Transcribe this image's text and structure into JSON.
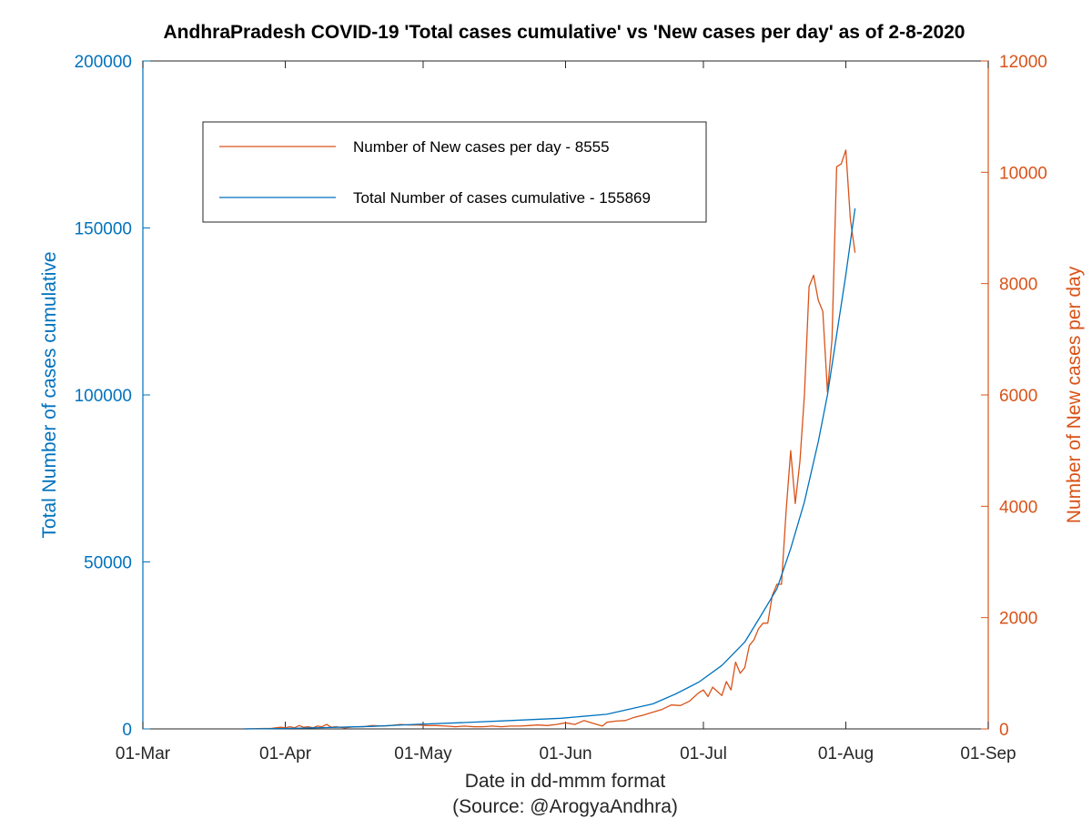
{
  "chart_data": {
    "type": "line",
    "title": "AndhraPradesh COVID-19 'Total cases cumulative' vs 'New cases per day' as of 2-8-2020",
    "xlabel": "Date in dd-mmm format",
    "xlabel_sub": "(Source: @ArogyaAndhra)",
    "ylabel_left": "Total Number of cases cumulative",
    "ylabel_right": "Number of New cases per day",
    "x_range": [
      "2020-03-01",
      "2020-09-01"
    ],
    "x_ticks": [
      {
        "date": "2020-03-01",
        "label": "01-Mar"
      },
      {
        "date": "2020-04-01",
        "label": "01-Apr"
      },
      {
        "date": "2020-05-01",
        "label": "01-May"
      },
      {
        "date": "2020-06-01",
        "label": "01-Jun"
      },
      {
        "date": "2020-07-01",
        "label": "01-Jul"
      },
      {
        "date": "2020-08-01",
        "label": "01-Aug"
      },
      {
        "date": "2020-09-01",
        "label": "01-Sep"
      }
    ],
    "ylim_left": [
      0,
      200000
    ],
    "yticks_left": [
      "0",
      "50000",
      "100000",
      "150000",
      "200000"
    ],
    "ylim_right": [
      0,
      12000
    ],
    "yticks_right": [
      "0",
      "2000",
      "4000",
      "6000",
      "8000",
      "10000",
      "12000"
    ],
    "grid": false,
    "legend_position": "top-left",
    "series": [
      {
        "name": "Number of New cases per day - 8555",
        "axis": "right",
        "color": "#d95319",
        "points": [
          [
            "2020-03-23",
            0
          ],
          [
            "2020-03-26",
            5
          ],
          [
            "2020-03-29",
            10
          ],
          [
            "2020-03-31",
            30
          ],
          [
            "2020-04-01",
            20
          ],
          [
            "2020-04-02",
            40
          ],
          [
            "2020-04-03",
            20
          ],
          [
            "2020-04-04",
            60
          ],
          [
            "2020-04-05",
            30
          ],
          [
            "2020-04-06",
            40
          ],
          [
            "2020-04-07",
            20
          ],
          [
            "2020-04-08",
            50
          ],
          [
            "2020-04-09",
            40
          ],
          [
            "2020-04-10",
            80
          ],
          [
            "2020-04-11",
            30
          ],
          [
            "2020-04-12",
            40
          ],
          [
            "2020-04-14",
            20
          ],
          [
            "2020-04-16",
            40
          ],
          [
            "2020-04-18",
            40
          ],
          [
            "2020-04-20",
            60
          ],
          [
            "2020-04-22",
            50
          ],
          [
            "2020-04-24",
            60
          ],
          [
            "2020-04-26",
            80
          ],
          [
            "2020-04-28",
            70
          ],
          [
            "2020-04-30",
            70
          ],
          [
            "2020-05-02",
            60
          ],
          [
            "2020-05-04",
            60
          ],
          [
            "2020-05-06",
            50
          ],
          [
            "2020-05-08",
            40
          ],
          [
            "2020-05-10",
            50
          ],
          [
            "2020-05-12",
            40
          ],
          [
            "2020-05-14",
            40
          ],
          [
            "2020-05-16",
            50
          ],
          [
            "2020-05-18",
            40
          ],
          [
            "2020-05-20",
            50
          ],
          [
            "2020-05-22",
            50
          ],
          [
            "2020-05-24",
            60
          ],
          [
            "2020-05-26",
            70
          ],
          [
            "2020-05-28",
            60
          ],
          [
            "2020-05-30",
            80
          ],
          [
            "2020-06-01",
            110
          ],
          [
            "2020-06-03",
            80
          ],
          [
            "2020-06-05",
            150
          ],
          [
            "2020-06-07",
            100
          ],
          [
            "2020-06-09",
            50
          ],
          [
            "2020-06-10",
            120
          ],
          [
            "2020-06-12",
            140
          ],
          [
            "2020-06-14",
            150
          ],
          [
            "2020-06-16",
            210
          ],
          [
            "2020-06-18",
            250
          ],
          [
            "2020-06-20",
            300
          ],
          [
            "2020-06-22",
            350
          ],
          [
            "2020-06-24",
            430
          ],
          [
            "2020-06-26",
            420
          ],
          [
            "2020-06-28",
            500
          ],
          [
            "2020-06-30",
            650
          ],
          [
            "2020-07-01",
            700
          ],
          [
            "2020-07-02",
            580
          ],
          [
            "2020-07-03",
            750
          ],
          [
            "2020-07-05",
            600
          ],
          [
            "2020-07-06",
            850
          ],
          [
            "2020-07-07",
            700
          ],
          [
            "2020-07-08",
            1200
          ],
          [
            "2020-07-09",
            1000
          ],
          [
            "2020-07-10",
            1100
          ],
          [
            "2020-07-11",
            1500
          ],
          [
            "2020-07-12",
            1600
          ],
          [
            "2020-07-13",
            1800
          ],
          [
            "2020-07-14",
            1900
          ],
          [
            "2020-07-15",
            1900
          ],
          [
            "2020-07-16",
            2400
          ],
          [
            "2020-07-17",
            2600
          ],
          [
            "2020-07-18",
            2600
          ],
          [
            "2020-07-19",
            3900
          ],
          [
            "2020-07-20",
            5000
          ],
          [
            "2020-07-21",
            4050
          ],
          [
            "2020-07-22",
            4800
          ],
          [
            "2020-07-23",
            6000
          ],
          [
            "2020-07-24",
            7950
          ],
          [
            "2020-07-25",
            8150
          ],
          [
            "2020-07-26",
            7700
          ],
          [
            "2020-07-27",
            7500
          ],
          [
            "2020-07-28",
            6050
          ],
          [
            "2020-07-29",
            7000
          ],
          [
            "2020-07-30",
            10100
          ],
          [
            "2020-07-31",
            10150
          ],
          [
            "2020-08-01",
            10400
          ],
          [
            "2020-08-02",
            9150
          ],
          [
            "2020-08-03",
            8555
          ]
        ]
      },
      {
        "name": "Total Number of cases cumulative - 155869",
        "axis": "left",
        "color": "#0072bd",
        "points": [
          [
            "2020-03-23",
            0
          ],
          [
            "2020-03-31",
            100
          ],
          [
            "2020-04-10",
            400
          ],
          [
            "2020-04-20",
            750
          ],
          [
            "2020-04-30",
            1400
          ],
          [
            "2020-05-10",
            1900
          ],
          [
            "2020-05-20",
            2500
          ],
          [
            "2020-05-31",
            3200
          ],
          [
            "2020-06-10",
            4400
          ],
          [
            "2020-06-20",
            7500
          ],
          [
            "2020-06-25",
            10500
          ],
          [
            "2020-06-30",
            14000
          ],
          [
            "2020-07-05",
            19000
          ],
          [
            "2020-07-10",
            26000
          ],
          [
            "2020-07-14",
            35000
          ],
          [
            "2020-07-17",
            42000
          ],
          [
            "2020-07-20",
            54000
          ],
          [
            "2020-07-23",
            68000
          ],
          [
            "2020-07-26",
            86000
          ],
          [
            "2020-07-28",
            100000
          ],
          [
            "2020-07-30",
            118000
          ],
          [
            "2020-08-01",
            136000
          ],
          [
            "2020-08-03",
            155869
          ]
        ]
      }
    ]
  }
}
